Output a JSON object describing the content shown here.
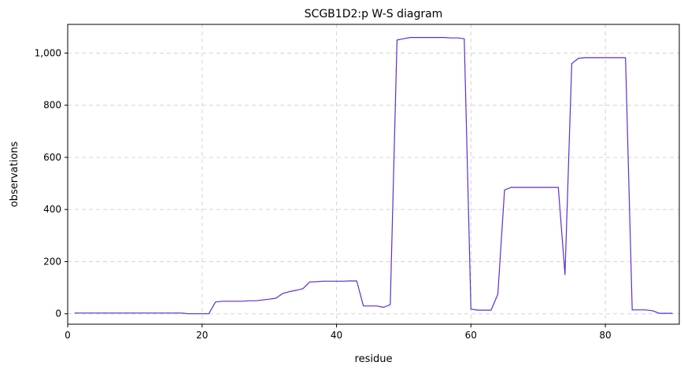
{
  "chart_data": {
    "type": "line",
    "title": "SCGB1D2:p W-S diagram",
    "xlabel": "residue",
    "ylabel": "observations",
    "xlim": [
      0,
      91
    ],
    "ylim": [
      -40,
      1110
    ],
    "xticks": [
      0,
      20,
      40,
      60,
      80
    ],
    "xtick_labels": [
      "0",
      "20",
      "40",
      "60",
      "80"
    ],
    "yticks": [
      0,
      200,
      400,
      600,
      800,
      1000
    ],
    "ytick_labels": [
      "0",
      "200",
      "400",
      "600",
      "800",
      "1,000"
    ],
    "grid": true,
    "series": [
      {
        "color": "#5b2fd0",
        "x": [
          1,
          2,
          3,
          4,
          5,
          6,
          7,
          8,
          9,
          10,
          11,
          12,
          13,
          14,
          15,
          16,
          17,
          18,
          19,
          20,
          21,
          22,
          23,
          24,
          25,
          26,
          27,
          28,
          29,
          30,
          31,
          32,
          33,
          34,
          35,
          36,
          37,
          38,
          39,
          40,
          41,
          42,
          43,
          44,
          45,
          46,
          47,
          48,
          49,
          50,
          51,
          52,
          53,
          54,
          55,
          56,
          57,
          58,
          59,
          60,
          61,
          62,
          63,
          64,
          65,
          66,
          67,
          68,
          69,
          70,
          71,
          72,
          73,
          74,
          75,
          76,
          77,
          78,
          79,
          80,
          81,
          82,
          83,
          84,
          85,
          86,
          87,
          88,
          89,
          90
        ],
        "y": [
          3,
          3,
          3,
          3,
          3,
          3,
          3,
          3,
          3,
          3,
          3,
          3,
          3,
          3,
          3,
          3,
          3,
          0,
          0,
          0,
          0,
          45,
          48,
          48,
          48,
          48,
          50,
          50,
          53,
          56,
          60,
          78,
          85,
          90,
          96,
          122,
          123,
          125,
          125,
          125,
          125,
          126,
          126,
          30,
          30,
          30,
          25,
          35,
          1050,
          1055,
          1060,
          1060,
          1060,
          1060,
          1060,
          1060,
          1058,
          1058,
          1055,
          18,
          14,
          14,
          14,
          75,
          475,
          485,
          485,
          485,
          485,
          485,
          485,
          485,
          485,
          150,
          960,
          980,
          982,
          982,
          982,
          982,
          982,
          982,
          982,
          15,
          15,
          15,
          12,
          2,
          2,
          2
        ]
      }
    ]
  }
}
